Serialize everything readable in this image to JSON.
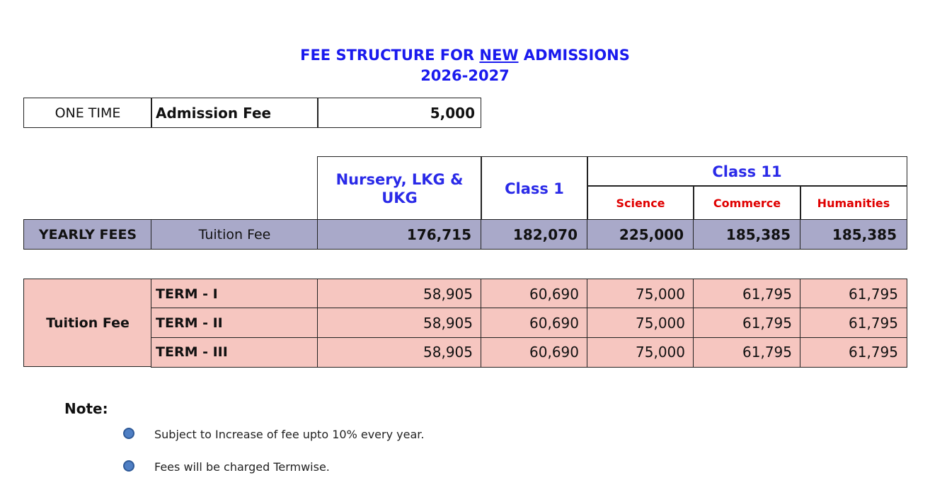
{
  "title": {
    "prefix": "FEE STRUCTURE FOR ",
    "underlined": "NEW",
    "suffix": " ADMISSIONS",
    "year": "2026-2027"
  },
  "one_time": {
    "label": "ONE TIME",
    "item": "Admission Fee",
    "amount": "5,000"
  },
  "header": {
    "col1": "Nursery, LKG & UKG",
    "col2": "Class 1",
    "group": "Class 11",
    "sub": [
      "Science",
      "Commerce",
      "Humanities"
    ]
  },
  "yearly": {
    "label": "YEARLY FEES",
    "item": "Tuition Fee",
    "values": [
      "176,715",
      "182,070",
      "225,000",
      "185,385",
      "185,385"
    ]
  },
  "terms": {
    "label": "Tuition Fee",
    "rows": [
      {
        "name": "TERM - I",
        "values": [
          "58,905",
          "60,690",
          "75,000",
          "61,795",
          "61,795"
        ]
      },
      {
        "name": "TERM - II",
        "values": [
          "58,905",
          "60,690",
          "75,000",
          "61,795",
          "61,795"
        ]
      },
      {
        "name": "TERM - III",
        "values": [
          "58,905",
          "60,690",
          "75,000",
          "61,795",
          "61,795"
        ]
      }
    ]
  },
  "notes": {
    "heading": "Note:",
    "items": [
      "Subject to Increase of fee upto 10% every year.",
      "Fees will be charged Termwise."
    ]
  },
  "colors": {
    "title": "#1a1aee",
    "subheader": "#e00000",
    "yearly_bg": "#a9a9c9",
    "term_bg": "#f6c6c0"
  }
}
